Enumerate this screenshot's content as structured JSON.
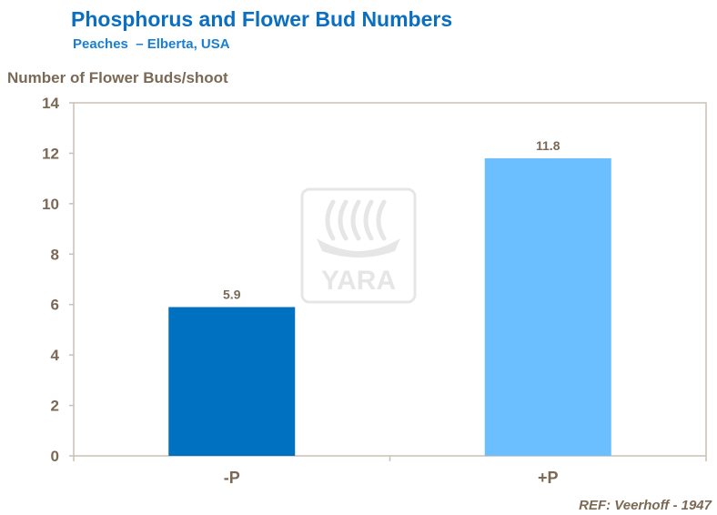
{
  "chart_data": {
    "type": "bar",
    "title": "Phosphorus and Flower Bud Numbers",
    "subtitle": "Peaches  – Elberta, USA",
    "ylabel": "Number of Flower Buds/shoot",
    "xlabel": "",
    "categories": [
      "-P",
      "+P"
    ],
    "values": [
      5.9,
      11.8
    ],
    "data_labels": [
      "5.9",
      "11.8"
    ],
    "ylim": [
      0,
      14
    ],
    "yticks": [
      0,
      2,
      4,
      6,
      8,
      10,
      12,
      14
    ],
    "grid": false,
    "legend": "none",
    "bar_colors": [
      "#0070c0",
      "#6bbfff"
    ],
    "watermark": "YARA",
    "reference": "REF: Veerhoff - 1947"
  }
}
